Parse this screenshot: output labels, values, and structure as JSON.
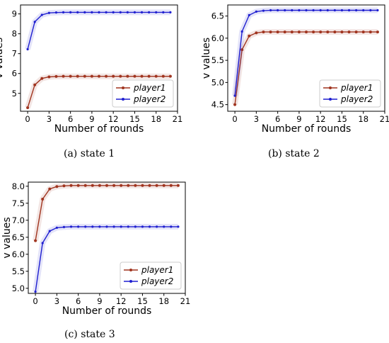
{
  "chart_data": [
    {
      "type": "line",
      "caption": "(a)  state 1",
      "xlabel": "Number of rounds",
      "ylabel": "v values",
      "xlim": [
        -1,
        21
      ],
      "ylim": [
        4.1,
        9.45
      ],
      "xticks": [
        0,
        3,
        6,
        9,
        12,
        15,
        18,
        21
      ],
      "yticks": [
        5,
        6,
        7,
        8,
        9
      ],
      "legend": "lower-right",
      "x": [
        0,
        1,
        2,
        3,
        4,
        5,
        6,
        7,
        8,
        9,
        10,
        11,
        12,
        13,
        14,
        15,
        16,
        17,
        18,
        19,
        20
      ],
      "series": [
        {
          "name": "player1",
          "color": "#a0341f",
          "values": [
            4.28,
            5.43,
            5.75,
            5.83,
            5.85,
            5.86,
            5.86,
            5.86,
            5.86,
            5.86,
            5.86,
            5.86,
            5.86,
            5.86,
            5.86,
            5.86,
            5.86,
            5.86,
            5.86,
            5.86,
            5.86
          ]
        },
        {
          "name": "player2",
          "color": "#1f1fd0",
          "values": [
            7.22,
            8.6,
            8.95,
            9.05,
            9.07,
            9.08,
            9.08,
            9.08,
            9.08,
            9.08,
            9.08,
            9.08,
            9.08,
            9.08,
            9.08,
            9.08,
            9.08,
            9.08,
            9.08,
            9.08,
            9.08
          ]
        }
      ]
    },
    {
      "type": "line",
      "caption": "(b)  state 2",
      "xlabel": "Number of rounds",
      "ylabel": "v values",
      "xlim": [
        -1,
        21
      ],
      "ylim": [
        4.35,
        6.75
      ],
      "xticks": [
        0,
        3,
        6,
        9,
        12,
        15,
        18,
        21
      ],
      "yticks": [
        4.5,
        5.0,
        5.5,
        6.0,
        6.5
      ],
      "tickfmt": 1,
      "legend": "lower-right",
      "x": [
        0,
        1,
        2,
        3,
        4,
        5,
        6,
        7,
        8,
        9,
        10,
        11,
        12,
        13,
        14,
        15,
        16,
        17,
        18,
        19,
        20
      ],
      "series": [
        {
          "name": "player1",
          "color": "#a0341f",
          "values": [
            4.5,
            5.74,
            6.05,
            6.12,
            6.14,
            6.14,
            6.14,
            6.14,
            6.14,
            6.14,
            6.14,
            6.14,
            6.14,
            6.14,
            6.14,
            6.14,
            6.14,
            6.14,
            6.14,
            6.14,
            6.14
          ]
        },
        {
          "name": "player2",
          "color": "#1f1fd0",
          "values": [
            4.7,
            6.15,
            6.52,
            6.6,
            6.62,
            6.63,
            6.63,
            6.63,
            6.63,
            6.63,
            6.63,
            6.63,
            6.63,
            6.63,
            6.63,
            6.63,
            6.63,
            6.63,
            6.63,
            6.63,
            6.63
          ]
        }
      ]
    },
    {
      "type": "line",
      "caption": "(c)  state 3",
      "xlabel": "Number of rounds",
      "ylabel": "v values",
      "xlim": [
        -1,
        21
      ],
      "ylim": [
        4.85,
        8.12
      ],
      "xticks": [
        0,
        3,
        6,
        9,
        12,
        15,
        18,
        21
      ],
      "yticks": [
        5.0,
        5.5,
        6.0,
        6.5,
        7.0,
        7.5,
        8.0
      ],
      "tickfmt": 1,
      "legend": "lower-right",
      "x": [
        0,
        1,
        2,
        3,
        4,
        5,
        6,
        7,
        8,
        9,
        10,
        11,
        12,
        13,
        14,
        15,
        16,
        17,
        18,
        19,
        20
      ],
      "series": [
        {
          "name": "player1",
          "color": "#a0341f",
          "values": [
            6.4,
            7.62,
            7.92,
            7.99,
            8.01,
            8.02,
            8.02,
            8.02,
            8.02,
            8.02,
            8.02,
            8.02,
            8.02,
            8.02,
            8.02,
            8.02,
            8.02,
            8.02,
            8.02,
            8.02,
            8.02
          ]
        },
        {
          "name": "player2",
          "color": "#1f1fd0",
          "values": [
            4.9,
            6.33,
            6.68,
            6.78,
            6.8,
            6.81,
            6.81,
            6.81,
            6.81,
            6.81,
            6.81,
            6.81,
            6.81,
            6.81,
            6.81,
            6.81,
            6.81,
            6.81,
            6.81,
            6.81,
            6.81
          ]
        }
      ]
    }
  ]
}
